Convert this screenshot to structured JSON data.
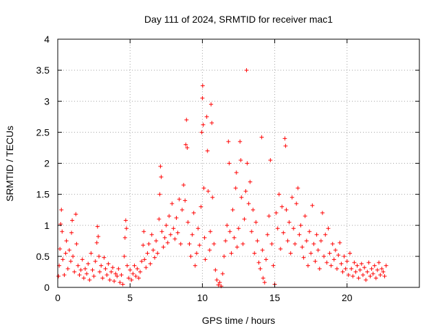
{
  "chart_data": {
    "type": "scatter",
    "title": "Day 111 of 2024, SRMTID for receiver mac1",
    "xlabel": "GPS time / hours",
    "ylabel": "SRMTID / TECUs",
    "xlim": [
      0,
      25
    ],
    "ylim": [
      0,
      4
    ],
    "x_ticks": [
      0,
      5,
      10,
      15,
      20
    ],
    "x_tick_labels": [
      "0",
      "5",
      "10",
      "15",
      "20"
    ],
    "y_ticks": [
      0,
      0.5,
      1,
      1.5,
      2,
      2.5,
      3,
      3.5,
      4
    ],
    "y_tick_labels": [
      "0",
      "0.5",
      "1",
      "1.5",
      "2",
      "2.5",
      "3",
      "3.5",
      "4"
    ],
    "grid": true,
    "marker": "+",
    "color": "#ff0000",
    "series": [
      {
        "name": "SRMTID",
        "points": [
          [
            0.05,
            0.18
          ],
          [
            0.1,
            0.35
          ],
          [
            0.15,
            0.62
          ],
          [
            0.2,
            1.02
          ],
          [
            0.25,
            1.25
          ],
          [
            0.3,
            0.9
          ],
          [
            0.35,
            0.45
          ],
          [
            0.45,
            0.2
          ],
          [
            0.55,
            0.55
          ],
          [
            0.6,
            0.75
          ],
          [
            0.7,
            0.3
          ],
          [
            0.8,
            0.6
          ],
          [
            0.9,
            0.42
          ],
          [
            0.95,
            0.88
          ],
          [
            1.0,
            1.08
          ],
          [
            1.05,
            0.5
          ],
          [
            1.15,
            0.25
          ],
          [
            1.25,
            1.18
          ],
          [
            1.3,
            0.7
          ],
          [
            1.4,
            0.35
          ],
          [
            1.5,
            0.2
          ],
          [
            1.6,
            0.28
          ],
          [
            1.7,
            0.45
          ],
          [
            1.8,
            0.15
          ],
          [
            1.9,
            0.3
          ],
          [
            2.0,
            0.22
          ],
          [
            2.1,
            0.38
          ],
          [
            2.2,
            0.12
          ],
          [
            2.3,
            0.55
          ],
          [
            2.4,
            0.28
          ],
          [
            2.5,
            0.18
          ],
          [
            2.6,
            0.42
          ],
          [
            2.7,
            0.72
          ],
          [
            2.75,
            0.98
          ],
          [
            2.8,
            0.82
          ],
          [
            2.85,
            0.5
          ],
          [
            2.9,
            0.25
          ],
          [
            3.0,
            0.35
          ],
          [
            3.1,
            0.15
          ],
          [
            3.2,
            0.48
          ],
          [
            3.3,
            0.3
          ],
          [
            3.4,
            0.2
          ],
          [
            3.5,
            0.38
          ],
          [
            3.6,
            0.12
          ],
          [
            3.7,
            0.25
          ],
          [
            3.8,
            0.32
          ],
          [
            3.9,
            0.1
          ],
          [
            4.0,
            0.22
          ],
          [
            4.1,
            0.18
          ],
          [
            4.2,
            0.3
          ],
          [
            4.3,
            0.08
          ],
          [
            4.4,
            0.2
          ],
          [
            4.5,
            0.05
          ],
          [
            4.6,
            0.5
          ],
          [
            4.65,
            0.8
          ],
          [
            4.7,
            1.08
          ],
          [
            4.75,
            0.95
          ],
          [
            4.8,
            0.35
          ],
          [
            4.9,
            0.15
          ],
          [
            5.0,
            0.28
          ],
          [
            5.1,
            0.12
          ],
          [
            5.2,
            0.22
          ],
          [
            5.3,
            0.35
          ],
          [
            5.4,
            0.18
          ],
          [
            5.5,
            0.3
          ],
          [
            5.6,
            0.15
          ],
          [
            5.7,
            0.25
          ],
          [
            5.8,
            0.42
          ],
          [
            5.9,
            0.68
          ],
          [
            5.95,
            0.9
          ],
          [
            6.0,
            0.45
          ],
          [
            6.1,
            0.32
          ],
          [
            6.2,
            0.55
          ],
          [
            6.3,
            0.7
          ],
          [
            6.4,
            0.38
          ],
          [
            6.5,
            0.85
          ],
          [
            6.6,
            0.6
          ],
          [
            6.7,
            0.48
          ],
          [
            6.8,
            0.75
          ],
          [
            6.9,
            0.55
          ],
          [
            7.0,
            1.1
          ],
          [
            7.05,
            1.5
          ],
          [
            7.1,
            1.95
          ],
          [
            7.15,
            1.78
          ],
          [
            7.2,
            0.9
          ],
          [
            7.3,
            0.65
          ],
          [
            7.4,
            0.8
          ],
          [
            7.5,
            1.0
          ],
          [
            7.6,
            0.72
          ],
          [
            7.7,
            1.15
          ],
          [
            7.8,
            0.85
          ],
          [
            7.9,
            1.35
          ],
          [
            8.0,
            0.95
          ],
          [
            8.1,
            0.78
          ],
          [
            8.2,
            1.12
          ],
          [
            8.3,
            0.88
          ],
          [
            8.4,
            1.42
          ],
          [
            8.5,
            0.7
          ],
          [
            8.6,
            1.25
          ],
          [
            8.7,
            1.65
          ],
          [
            8.8,
            1.4
          ],
          [
            8.85,
            2.3
          ],
          [
            8.9,
            2.7
          ],
          [
            8.95,
            2.25
          ],
          [
            9.0,
            1.05
          ],
          [
            9.1,
            0.7
          ],
          [
            9.2,
            0.5
          ],
          [
            9.3,
            0.85
          ],
          [
            9.4,
            1.2
          ],
          [
            9.5,
            0.35
          ],
          [
            9.6,
            0.55
          ],
          [
            9.7,
            0.95
          ],
          [
            9.8,
            0.68
          ],
          [
            9.9,
            1.3
          ],
          [
            9.95,
            2.5
          ],
          [
            10.0,
            3.05
          ],
          [
            10.02,
            3.25
          ],
          [
            10.05,
            2.62
          ],
          [
            10.1,
            1.6
          ],
          [
            10.15,
            0.8
          ],
          [
            10.2,
            0.45
          ],
          [
            10.3,
            2.75
          ],
          [
            10.35,
            2.2
          ],
          [
            10.4,
            1.55
          ],
          [
            10.5,
            0.6
          ],
          [
            10.55,
            0.9
          ],
          [
            10.6,
            2.95
          ],
          [
            10.65,
            2.65
          ],
          [
            10.7,
            1.45
          ],
          [
            10.8,
            0.7
          ],
          [
            10.9,
            0.28
          ],
          [
            11.0,
            0.12
          ],
          [
            11.1,
            0.04
          ],
          [
            11.2,
            0.08
          ],
          [
            11.3,
            0.02
          ],
          [
            11.4,
            0.22
          ],
          [
            11.5,
            0.5
          ],
          [
            11.6,
            0.75
          ],
          [
            11.7,
            1.0
          ],
          [
            11.8,
            2.35
          ],
          [
            11.85,
            2.0
          ],
          [
            11.9,
            0.9
          ],
          [
            12.0,
            0.55
          ],
          [
            12.1,
            1.25
          ],
          [
            12.2,
            0.8
          ],
          [
            12.3,
            1.6
          ],
          [
            12.35,
            1.85
          ],
          [
            12.4,
            0.65
          ],
          [
            12.5,
            0.95
          ],
          [
            12.6,
            2.35
          ],
          [
            12.65,
            2.05
          ],
          [
            12.7,
            1.45
          ],
          [
            12.8,
            0.7
          ],
          [
            12.9,
            1.1
          ],
          [
            13.0,
            1.55
          ],
          [
            13.05,
            3.5
          ],
          [
            13.1,
            2.0
          ],
          [
            13.2,
            1.35
          ],
          [
            13.3,
            1.7
          ],
          [
            13.4,
            0.9
          ],
          [
            13.5,
            1.25
          ],
          [
            13.6,
            0.55
          ],
          [
            13.7,
            1.05
          ],
          [
            13.8,
            0.75
          ],
          [
            13.9,
            0.4
          ],
          [
            14.0,
            0.3
          ],
          [
            14.1,
            2.42
          ],
          [
            14.15,
            0.6
          ],
          [
            14.2,
            0.15
          ],
          [
            14.3,
            0.08
          ],
          [
            14.4,
            0.45
          ],
          [
            14.5,
            0.85
          ],
          [
            14.6,
            1.15
          ],
          [
            14.7,
            2.05
          ],
          [
            14.8,
            0.7
          ],
          [
            14.9,
            0.35
          ],
          [
            15.0,
            0.05
          ],
          [
            15.1,
            1.2
          ],
          [
            15.2,
            0.95
          ],
          [
            15.3,
            1.5
          ],
          [
            15.4,
            0.62
          ],
          [
            15.5,
            1.3
          ],
          [
            15.6,
            0.88
          ],
          [
            15.7,
            2.4
          ],
          [
            15.75,
            2.28
          ],
          [
            15.8,
            1.25
          ],
          [
            15.9,
            0.75
          ],
          [
            16.0,
            1.05
          ],
          [
            16.1,
            0.55
          ],
          [
            16.2,
            1.45
          ],
          [
            16.3,
            0.95
          ],
          [
            16.4,
            0.7
          ],
          [
            16.5,
            1.35
          ],
          [
            16.6,
            1.6
          ],
          [
            16.7,
            0.85
          ],
          [
            16.8,
            1.0
          ],
          [
            16.9,
            0.65
          ],
          [
            17.0,
            0.48
          ],
          [
            17.1,
            1.15
          ],
          [
            17.2,
            0.75
          ],
          [
            17.3,
            0.35
          ],
          [
            17.4,
            0.9
          ],
          [
            17.5,
            0.55
          ],
          [
            17.6,
            1.32
          ],
          [
            17.7,
            0.7
          ],
          [
            17.8,
            0.42
          ],
          [
            17.9,
            0.85
          ],
          [
            18.0,
            0.6
          ],
          [
            18.1,
            0.3
          ],
          [
            18.2,
            0.75
          ],
          [
            18.3,
            1.2
          ],
          [
            18.4,
            0.5
          ],
          [
            18.5,
            0.85
          ],
          [
            18.6,
            0.4
          ],
          [
            18.7,
            0.95
          ],
          [
            18.8,
            0.55
          ],
          [
            18.9,
            0.35
          ],
          [
            19.0,
            0.7
          ],
          [
            19.1,
            0.45
          ],
          [
            19.2,
            0.6
          ],
          [
            19.3,
            0.3
          ],
          [
            19.4,
            0.52
          ],
          [
            19.5,
            0.72
          ],
          [
            19.6,
            0.38
          ],
          [
            19.7,
            0.25
          ],
          [
            19.8,
            0.5
          ],
          [
            19.9,
            0.3
          ],
          [
            20.0,
            0.42
          ],
          [
            20.1,
            0.2
          ],
          [
            20.2,
            0.55
          ],
          [
            20.3,
            0.3
          ],
          [
            20.4,
            0.18
          ],
          [
            20.5,
            0.4
          ],
          [
            20.6,
            0.25
          ],
          [
            20.7,
            0.35
          ],
          [
            20.8,
            0.15
          ],
          [
            20.9,
            0.28
          ],
          [
            21.0,
            0.38
          ],
          [
            21.1,
            0.2
          ],
          [
            21.2,
            0.32
          ],
          [
            21.3,
            0.12
          ],
          [
            21.4,
            0.25
          ],
          [
            21.5,
            0.4
          ],
          [
            21.6,
            0.18
          ],
          [
            21.7,
            0.3
          ],
          [
            21.8,
            0.22
          ],
          [
            21.9,
            0.35
          ],
          [
            22.0,
            0.15
          ],
          [
            22.1,
            0.28
          ],
          [
            22.2,
            0.4
          ],
          [
            22.3,
            0.2
          ],
          [
            22.4,
            0.3
          ],
          [
            22.5,
            0.25
          ],
          [
            22.6,
            0.18
          ],
          [
            22.7,
            0.35
          ]
        ]
      }
    ]
  }
}
